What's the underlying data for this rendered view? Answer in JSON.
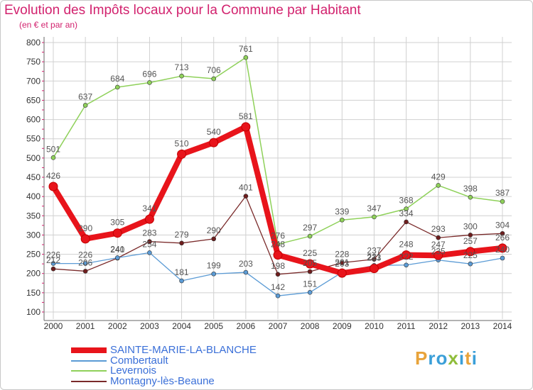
{
  "title": "Evolution des Impôts locaux pour la Commune par Habitant",
  "subtitle": "(en € et par an)",
  "logo": {
    "letters": [
      "P",
      "r",
      "o",
      "x",
      "i",
      "t",
      "i"
    ],
    "colors": [
      "#e8a33a",
      "#3b9fd8",
      "#3b9fd8",
      "#8fbd3a",
      "#3b9fd8",
      "#e8a33a",
      "#3b9fd8"
    ]
  },
  "colors": {
    "grid": "#d0d0d0",
    "axis": "#666666",
    "tick_marks": "#d2226e",
    "legend_text": "#3a6fd8",
    "value_text": "#555555"
  },
  "chart_data": {
    "type": "line",
    "title": "Evolution des Impôts locaux pour la Commune par Habitant",
    "subtitle": "(en € et par an)",
    "xlabel": "",
    "ylabel": "",
    "x": [
      "2000",
      "2001",
      "2002",
      "2003",
      "2004",
      "2005",
      "2006",
      "2007",
      "2008",
      "2009",
      "2010",
      "2011",
      "2012",
      "2013",
      "2014"
    ],
    "y_ticks": [
      "100",
      "150",
      "200",
      "250",
      "300",
      "350",
      "400",
      "450",
      "500",
      "550",
      "600",
      "650",
      "700",
      "750",
      "800"
    ],
    "ylim": [
      100,
      800
    ],
    "grid": true,
    "legend_position": "bottom-left",
    "series": [
      {
        "name": "Levernois",
        "color": "#8fd15a",
        "width": 1.5,
        "marker_fill": "#8fd15a",
        "values": [
          501,
          637,
          684,
          696,
          713,
          706,
          761,
          276,
          297,
          339,
          347,
          368,
          429,
          398,
          387
        ],
        "labels": [
          "501",
          "637",
          "684",
          "696",
          "713",
          "706",
          "761",
          "276",
          "297",
          "339",
          "347",
          "368",
          "429",
          "398",
          "387"
        ]
      },
      {
        "name": "Montagny-lès-Beaune",
        "color": "#7a2a2a",
        "width": 1.3,
        "marker_fill": "#6e1d1d",
        "values": [
          212,
          206,
          240,
          283,
          279,
          290,
          401,
          198,
          205,
          228,
          237,
          334,
          293,
          300,
          304
        ],
        "labels": [
          "212",
          "206",
          "240",
          "283",
          "279",
          "290",
          "401",
          "198",
          "205",
          "228",
          "237",
          "334",
          "293",
          "300",
          "304"
        ]
      },
      {
        "name": "Combertault",
        "color": "#5b9bd5",
        "width": 1.3,
        "marker_fill": "#5b9bd5",
        "values": [
          226,
          226,
          241,
          254,
          181,
          199,
          203,
          142,
          151,
          203,
          221,
          222,
          235,
          225,
          240
        ],
        "labels": [
          "226",
          "226",
          "241",
          "254",
          "181",
          "199",
          "203",
          "142",
          "151",
          "203",
          "221",
          "222",
          "235",
          "225",
          "240"
        ]
      },
      {
        "name": "SAINTE-MARIE-LA-BLANCHE",
        "color": "#e8141b",
        "width": 8,
        "marker_fill": "#e8141b",
        "values": [
          426,
          290,
          305,
          341,
          510,
          540,
          581,
          248,
          225,
          201,
          213,
          248,
          247,
          257,
          266
        ],
        "labels": [
          "426",
          "290",
          "305",
          "341",
          "510",
          "540",
          "581",
          "248",
          "225",
          "201",
          "213",
          "248",
          "247",
          "257",
          "266"
        ]
      }
    ],
    "legend_order": [
      "SAINTE-MARIE-LA-BLANCHE",
      "Combertault",
      "Levernois",
      "Montagny-lès-Beaune"
    ]
  }
}
